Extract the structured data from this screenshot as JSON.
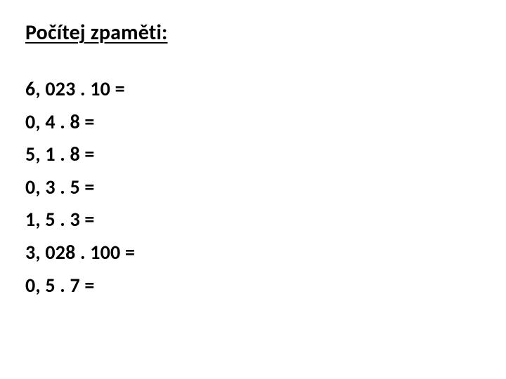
{
  "title": "Počítej zpaměti:",
  "title_fontsize_pt": 22,
  "title_color": "#000000",
  "title_underline": true,
  "problem_fontsize_pt": 21,
  "problem_color": "#000000",
  "problem_fontweight": 700,
  "background_color": "#ffffff",
  "problems": [
    "6, 023 . 10 =",
    "0, 4 . 8 =",
    "5, 1 . 8 =",
    "0, 3 . 5 =",
    "1, 5 . 3 =",
    "3, 028 . 100 =",
    "0, 5 . 7 ="
  ]
}
